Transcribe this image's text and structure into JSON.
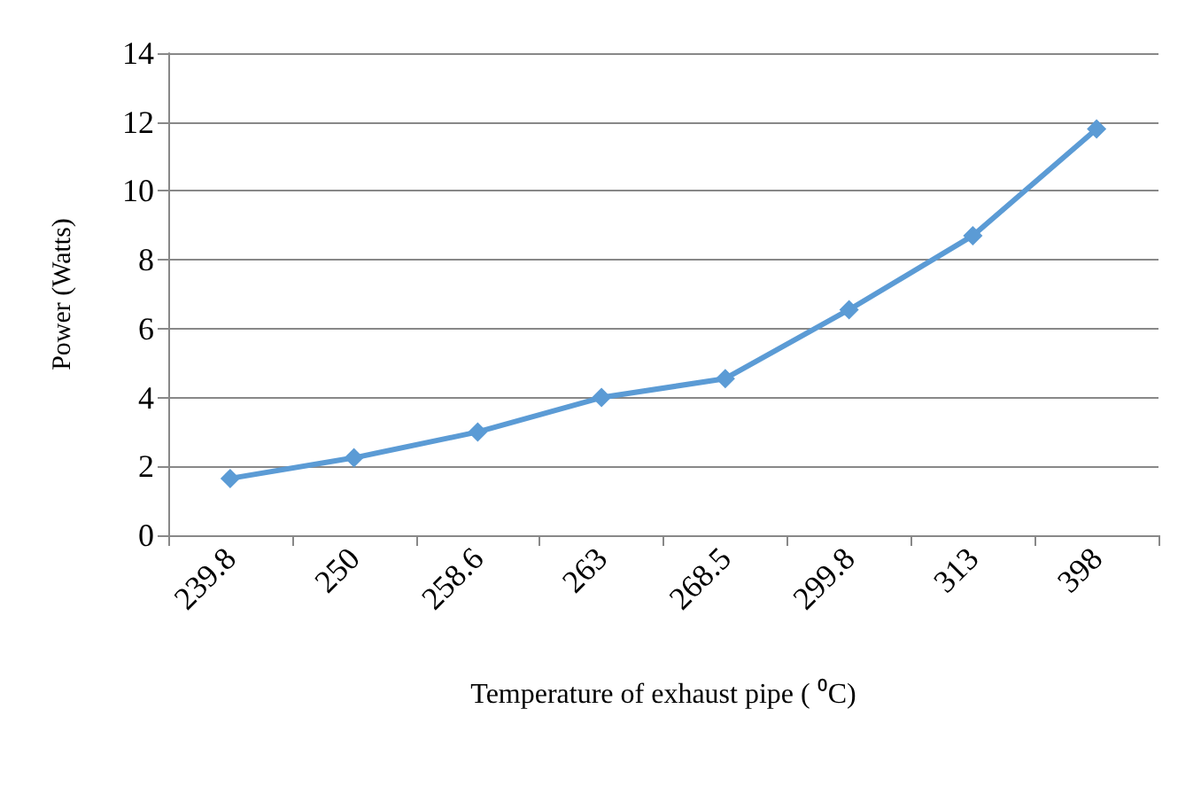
{
  "chart_data": {
    "type": "line",
    "xlabel": "Temperature of exhaust pipe ( ⁰C)",
    "ylabel": "Power (Watts)",
    "categories": [
      "239.8",
      "250",
      "258.6",
      "263",
      "268.5",
      "299.8",
      "313",
      "398"
    ],
    "series": [
      {
        "color": "#5b9bd5",
        "values": [
          1.65,
          2.25,
          3.0,
          4.0,
          4.55,
          6.55,
          8.7,
          11.8
        ]
      }
    ],
    "ylim": [
      0,
      14
    ],
    "yticks": [
      0,
      2,
      4,
      6,
      8,
      10,
      12,
      14
    ],
    "grid": "y",
    "marker": "diamond",
    "line_style": "solid"
  }
}
